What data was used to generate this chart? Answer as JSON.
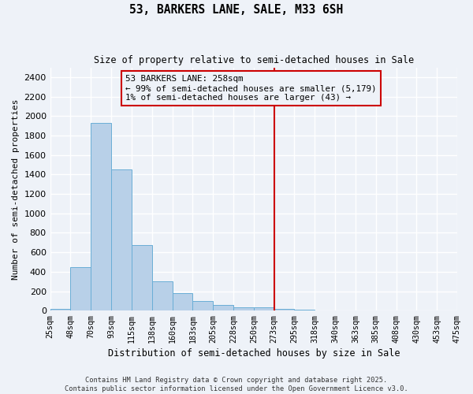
{
  "title": "53, BARKERS LANE, SALE, M33 6SH",
  "subtitle": "Size of property relative to semi-detached houses in Sale",
  "xlabel": "Distribution of semi-detached houses by size in Sale",
  "ylabel": "Number of semi-detached properties",
  "bar_values": [
    15,
    450,
    1930,
    1450,
    670,
    305,
    180,
    95,
    60,
    35,
    30,
    15,
    10,
    5,
    5,
    3,
    2,
    1,
    1,
    1
  ],
  "categories": [
    "25sqm",
    "48sqm",
    "70sqm",
    "93sqm",
    "115sqm",
    "138sqm",
    "160sqm",
    "183sqm",
    "205sqm",
    "228sqm",
    "250sqm",
    "273sqm",
    "295sqm",
    "318sqm",
    "340sqm",
    "363sqm",
    "385sqm",
    "408sqm",
    "430sqm",
    "453sqm",
    "475sqm"
  ],
  "bar_color": "#b8d0e8",
  "bar_edge_color": "#6aaed6",
  "vline_x_bin": 10,
  "vline_color": "#cc0000",
  "annotation_text": "53 BARKERS LANE: 258sqm\n← 99% of semi-detached houses are smaller (5,179)\n1% of semi-detached houses are larger (43) →",
  "annotation_box_color": "#cc0000",
  "ylim": [
    0,
    2500
  ],
  "yticks": [
    0,
    200,
    400,
    600,
    800,
    1000,
    1200,
    1400,
    1600,
    1800,
    2000,
    2200,
    2400
  ],
  "footer_line1": "Contains HM Land Registry data © Crown copyright and database right 2025.",
  "footer_line2": "Contains public sector information licensed under the Open Government Licence v3.0.",
  "background_color": "#eef2f8",
  "grid_color": "#ffffff"
}
